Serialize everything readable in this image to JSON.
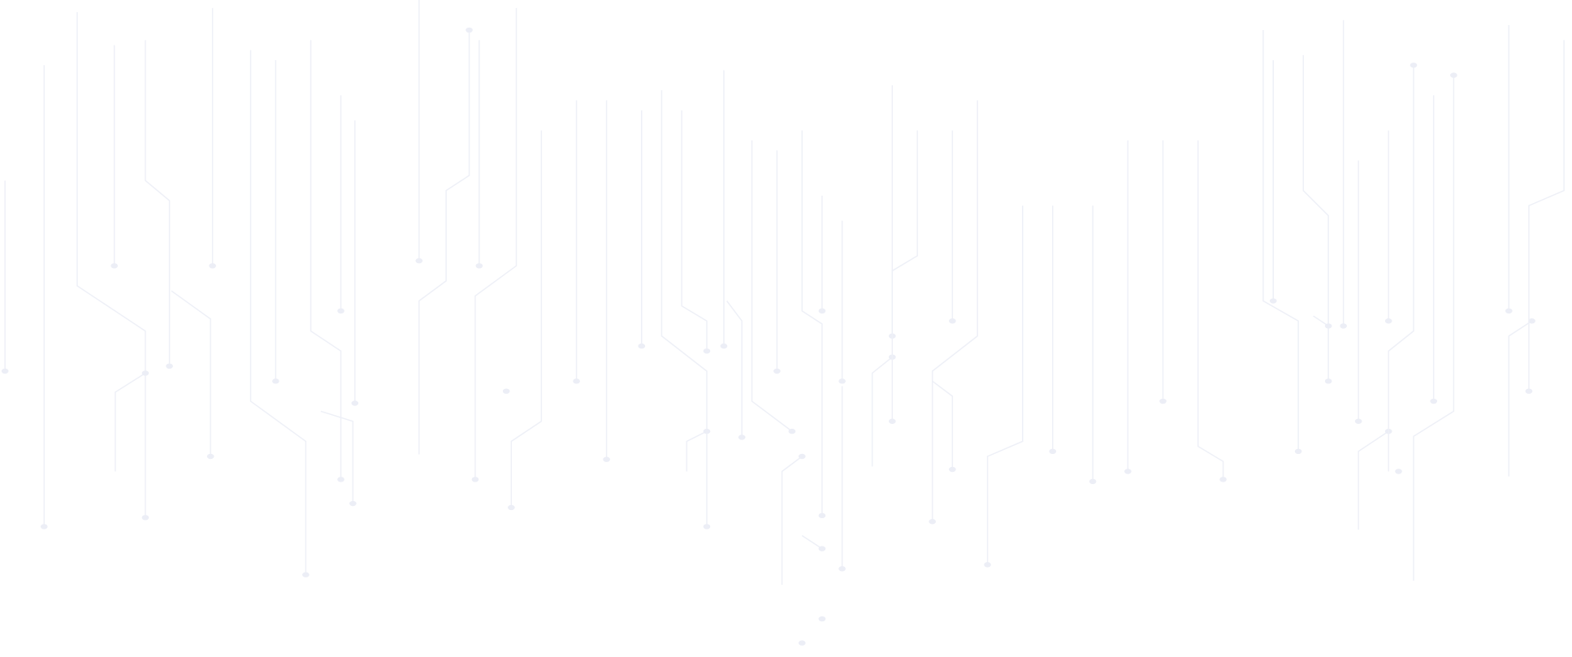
{
  "background": {
    "pattern": "circuit-traces",
    "colors": {
      "background": "#ffffff",
      "trace": "#eef0f7",
      "node": "#eceef6"
    }
  }
}
